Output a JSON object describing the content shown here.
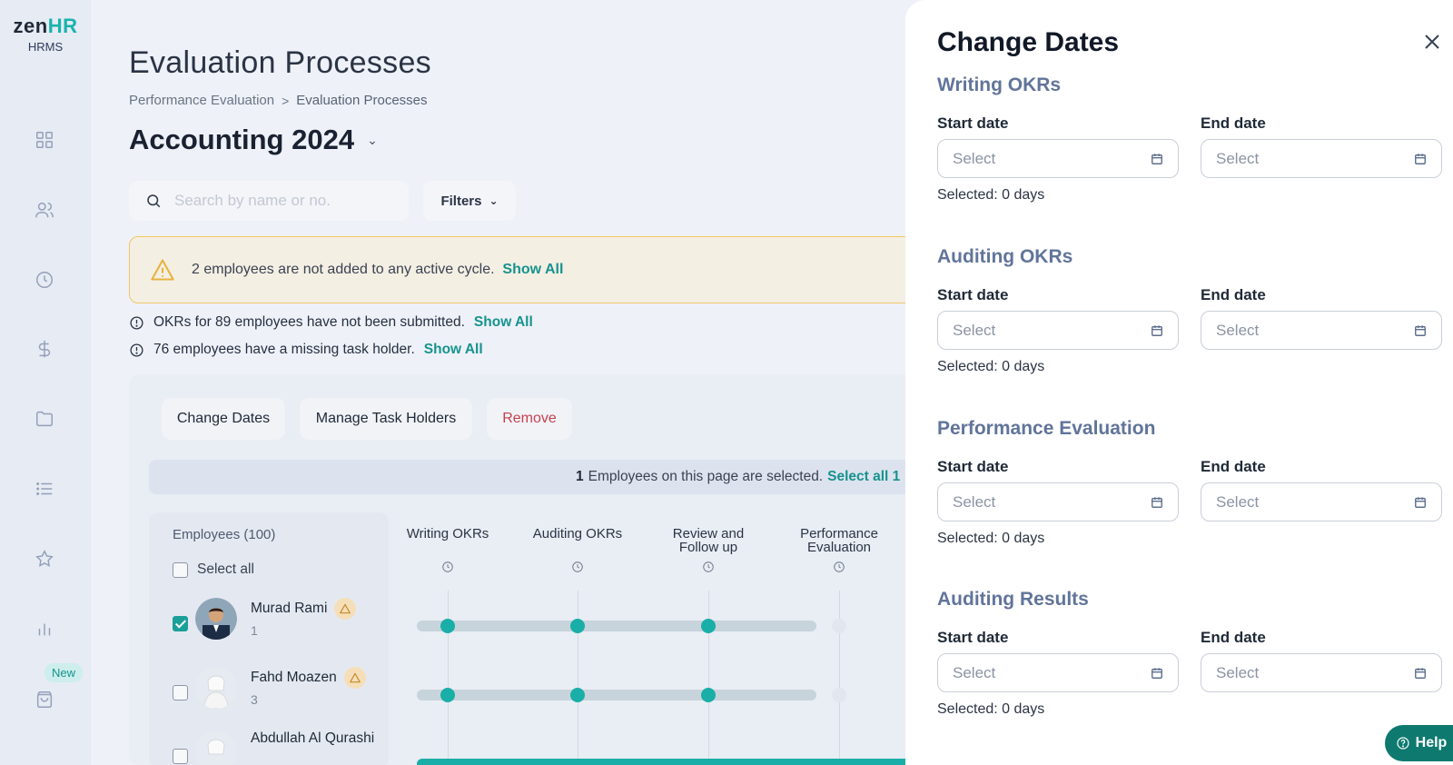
{
  "brand": {
    "logo_prefix": "zen",
    "logo_suffix": "HR",
    "sublabel": "HRMS",
    "new_badge": "New"
  },
  "colors": {
    "accent": "#1aaea8",
    "danger": "#c6414d",
    "section_title": "#61749a",
    "warning_border": "#f1c66b"
  },
  "sidebar_icons": [
    "grid-icon",
    "users-icon",
    "clock-icon",
    "dollar-icon",
    "folder-icon",
    "list-icon",
    "star-icon",
    "bar-chart-icon",
    "shopping-bag-icon"
  ],
  "page": {
    "title": "Evaluation Processes",
    "breadcrumb": {
      "parent": "Performance Evaluation",
      "separator": ">",
      "current": "Evaluation Processes"
    },
    "cycle_name": "Accounting 2024"
  },
  "search": {
    "placeholder": "Search by name or no."
  },
  "filters_label": "Filters",
  "warning_banner": {
    "text": "2 employees are not added to any active cycle.",
    "link": "Show All"
  },
  "notices": [
    {
      "text": "OKRs for 89 employees have not been submitted.",
      "link": "Show All"
    },
    {
      "text": "76 employees have a missing task holder.",
      "link": "Show All"
    }
  ],
  "actions": {
    "change_dates": "Change Dates",
    "manage_task_holders": "Manage Task Holders",
    "remove": "Remove"
  },
  "selection_bar": {
    "count": "1",
    "text": "Employees on this page are selected.",
    "link": "Select all 1"
  },
  "employees_panel": {
    "header": "Employees (100)",
    "select_all": "Select all",
    "employees": [
      {
        "name": "Murad Rami",
        "number": "1",
        "checked": true
      },
      {
        "name": "Fahd Moazen",
        "number": "3",
        "checked": false
      },
      {
        "name": "Abdullah Al Qurashi",
        "number": "",
        "checked": false
      }
    ]
  },
  "stages": [
    {
      "line1": "Writing OKRs",
      "line2": ""
    },
    {
      "line1": "Auditing OKRs",
      "line2": ""
    },
    {
      "line1": "Review and",
      "line2": "Follow up"
    },
    {
      "line1": "Performance",
      "line2": "Evaluation"
    }
  ],
  "drawer": {
    "title": "Change Dates",
    "start_label": "Start date",
    "end_label": "End date",
    "input_placeholder": "Select",
    "sections": [
      {
        "title": "Writing OKRs",
        "selected": "Selected: 0 days"
      },
      {
        "title": "Auditing OKRs",
        "selected": "Selected: 0 days"
      },
      {
        "title": "Performance Evaluation",
        "selected": "Selected: 0 days"
      },
      {
        "title": "Auditing Results",
        "selected": "Selected: 0 days"
      }
    ]
  },
  "help_label": "Help"
}
